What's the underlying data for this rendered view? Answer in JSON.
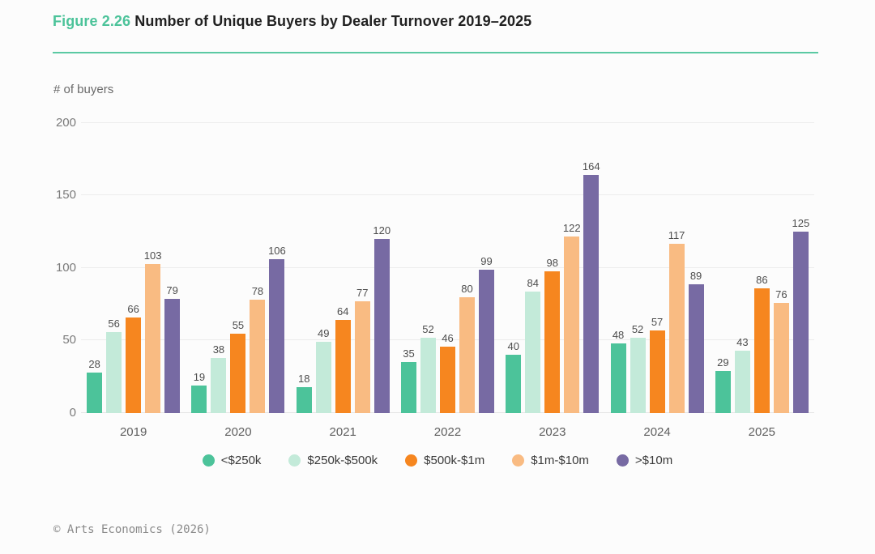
{
  "title": {
    "figure_label": "Figure 2.26",
    "text": "Number of Unique Buyers by Dealer Turnover 2019–2025"
  },
  "footer": "© Arts Economics (2026)",
  "colors": {
    "figure_label_green": "#4cc39a",
    "rule_green": "#5bc9a3",
    "gridline": "#ececec",
    "value_label": "#4d4d4d"
  },
  "chart_data": {
    "type": "bar",
    "title": "Number of Unique Buyers by Dealer Turnover 2019–2025",
    "xlabel": "",
    "ylabel": "# of buyers",
    "ylim": [
      0,
      200
    ],
    "yticks": [
      0,
      50,
      100,
      150,
      200
    ],
    "grid": true,
    "legend_position": "bottom",
    "categories": [
      "2019",
      "2020",
      "2021",
      "2022",
      "2023",
      "2024",
      "2025"
    ],
    "series": [
      {
        "name": "<$250k",
        "color": "#4cc39a",
        "values": [
          28,
          19,
          18,
          35,
          40,
          48,
          29
        ]
      },
      {
        "name": "$250k-$500k",
        "color": "#c3ead9",
        "values": [
          56,
          38,
          49,
          52,
          84,
          52,
          43
        ]
      },
      {
        "name": "$500k-$1m",
        "color": "#f6861f",
        "values": [
          66,
          55,
          64,
          46,
          98,
          57,
          86
        ]
      },
      {
        "name": "$1m-$10m",
        "color": "#f9bb82",
        "values": [
          103,
          78,
          77,
          80,
          122,
          117,
          76
        ]
      },
      {
        "name": ">$10m",
        "color": "#776aa3",
        "values": [
          79,
          106,
          120,
          99,
          164,
          89,
          125
        ]
      }
    ]
  }
}
